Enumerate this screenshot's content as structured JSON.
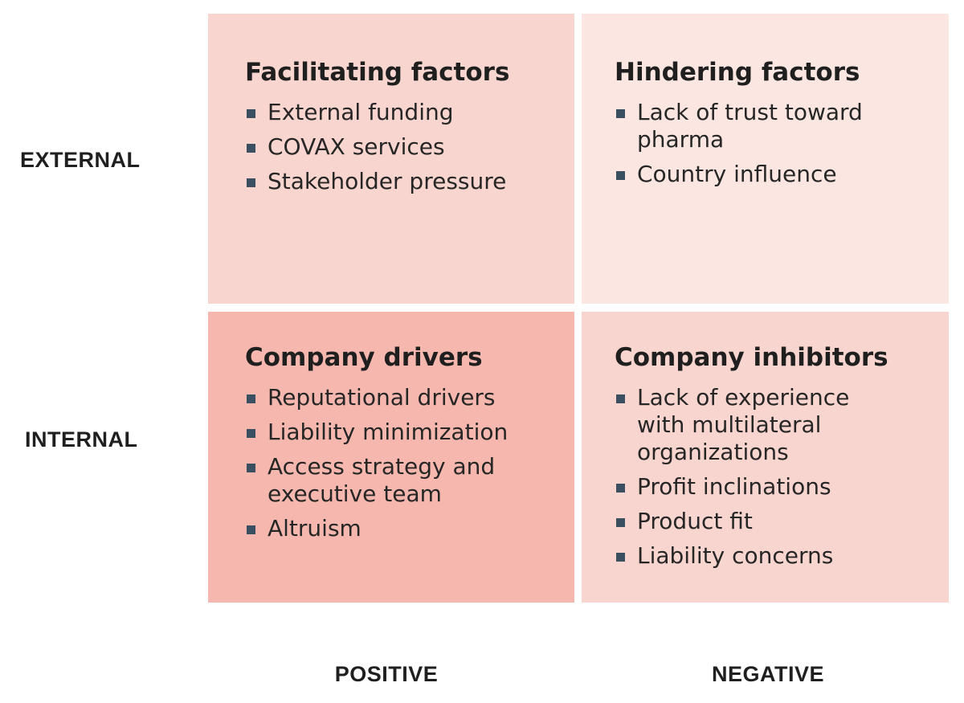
{
  "row_labels": {
    "external": "EXTERNAL",
    "internal": "INTERNAL"
  },
  "col_labels": {
    "positive": "POSITIVE",
    "negative": "NEGATIVE"
  },
  "quadrants": {
    "top_left": {
      "title": "Facilitating factors",
      "color": "#f9d5cf",
      "items": [
        "External funding",
        "COVAX services",
        "Stakeholder pressure"
      ]
    },
    "top_right": {
      "title": "Hindering factors",
      "color": "#fce6e1",
      "items": [
        "Lack of trust toward pharma",
        "Country influence"
      ]
    },
    "bottom_left": {
      "title": "Company drivers",
      "color": "#f6b8ae",
      "items": [
        "Reputational drivers",
        "Liability minimization",
        "Access strategy and executive team",
        "Altruism"
      ]
    },
    "bottom_right": {
      "title": "Company inhibitors",
      "color": "#f9d5cf",
      "items": [
        "Lack of experience with multilateral organizations",
        "Profit inclinations",
        "Product fit",
        "Liability concerns"
      ]
    }
  },
  "bullet_color": "#3a5060"
}
